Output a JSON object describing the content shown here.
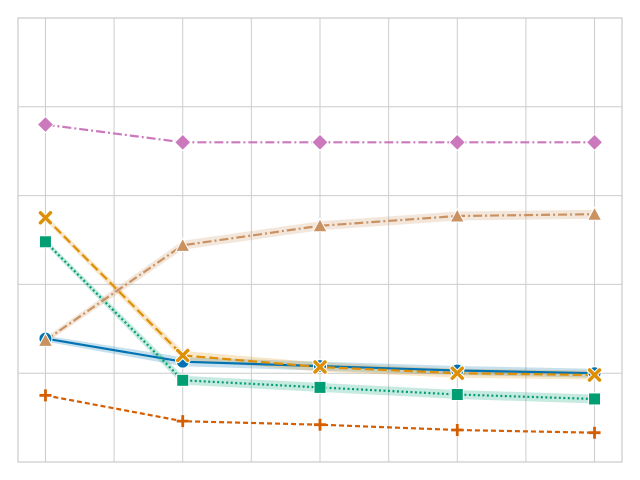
{
  "chart_data": {
    "type": "line",
    "title": "",
    "xlabel": "",
    "ylabel": "",
    "x": [
      1,
      2,
      3,
      4,
      5
    ],
    "xlim": [
      0.8,
      5.2
    ],
    "ylim": [
      0,
      5
    ],
    "grid": true,
    "legend": "none",
    "series": [
      {
        "color": "#0173B2",
        "marker": "circle",
        "dash": "solid",
        "band": true,
        "values": [
          1.39,
          1.13,
          1.08,
          1.03,
          1.0
        ]
      },
      {
        "color": "#DE8F05",
        "marker": "x",
        "dash": "long-dash",
        "band": true,
        "values": [
          2.75,
          1.2,
          1.07,
          1.0,
          0.98
        ]
      },
      {
        "color": "#029E73",
        "marker": "square",
        "dash": "dotted",
        "band": true,
        "values": [
          2.48,
          0.92,
          0.84,
          0.76,
          0.71
        ]
      },
      {
        "color": "#D55E00",
        "marker": "plus",
        "dash": "short-dash",
        "band": false,
        "values": [
          0.75,
          0.46,
          0.42,
          0.36,
          0.33
        ]
      },
      {
        "color": "#CC78BC",
        "marker": "diamond",
        "dash": "dash-dot",
        "band": false,
        "values": [
          3.8,
          3.6,
          3.6,
          3.6,
          3.6
        ]
      },
      {
        "color": "#CA9161",
        "marker": "triangle",
        "dash": "dash-dot",
        "band": true,
        "values": [
          1.37,
          2.44,
          2.66,
          2.77,
          2.79
        ]
      }
    ]
  }
}
